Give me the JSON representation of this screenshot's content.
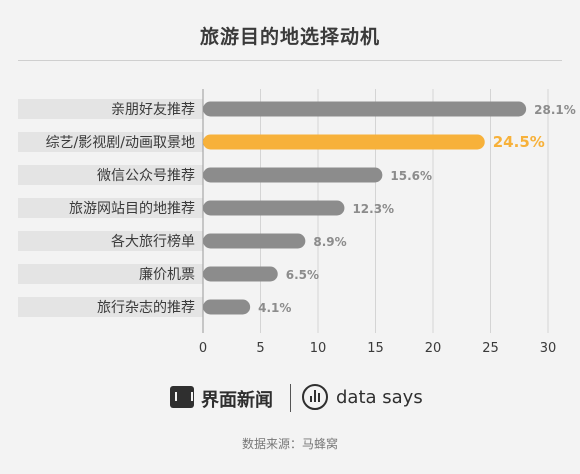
{
  "chart_data": {
    "type": "bar",
    "orientation": "horizontal",
    "title": "旅游目的地选择动机",
    "categories": [
      "亲朋好友推荐",
      "综艺/影视剧/动画取景地",
      "微信公众号推荐",
      "旅游网站目的地推荐",
      "各大旅行榜单",
      "廉价机票",
      "旅行杂志的推荐"
    ],
    "values": [
      28.1,
      24.5,
      15.6,
      12.3,
      8.9,
      6.5,
      4.1
    ],
    "value_labels": [
      "28.1%",
      "24.5%",
      "15.6%",
      "12.3%",
      "8.9%",
      "6.5%",
      "4.1%"
    ],
    "highlight_index": 1,
    "xlim": [
      0,
      30
    ],
    "xticks": [
      0,
      5,
      10,
      15,
      20,
      25,
      30
    ],
    "xtick_labels": [
      "0",
      "5",
      "10",
      "15",
      "20",
      "25",
      "30"
    ],
    "grid": true,
    "colors": {
      "bar": "#8c8c8c",
      "highlight": "#f7b13a",
      "label_text": "#8c8c8c",
      "highlight_text": "#f7b13a",
      "category_text": "#3a3a3a",
      "category_band": "#e4e4e4"
    }
  },
  "footer": {
    "brand": "界面新闻",
    "brand_icon": "jiemian-logo-icon",
    "partner": "data says",
    "partner_icon": "data-says-logo-icon",
    "source": "数据来源：马蜂窝"
  }
}
